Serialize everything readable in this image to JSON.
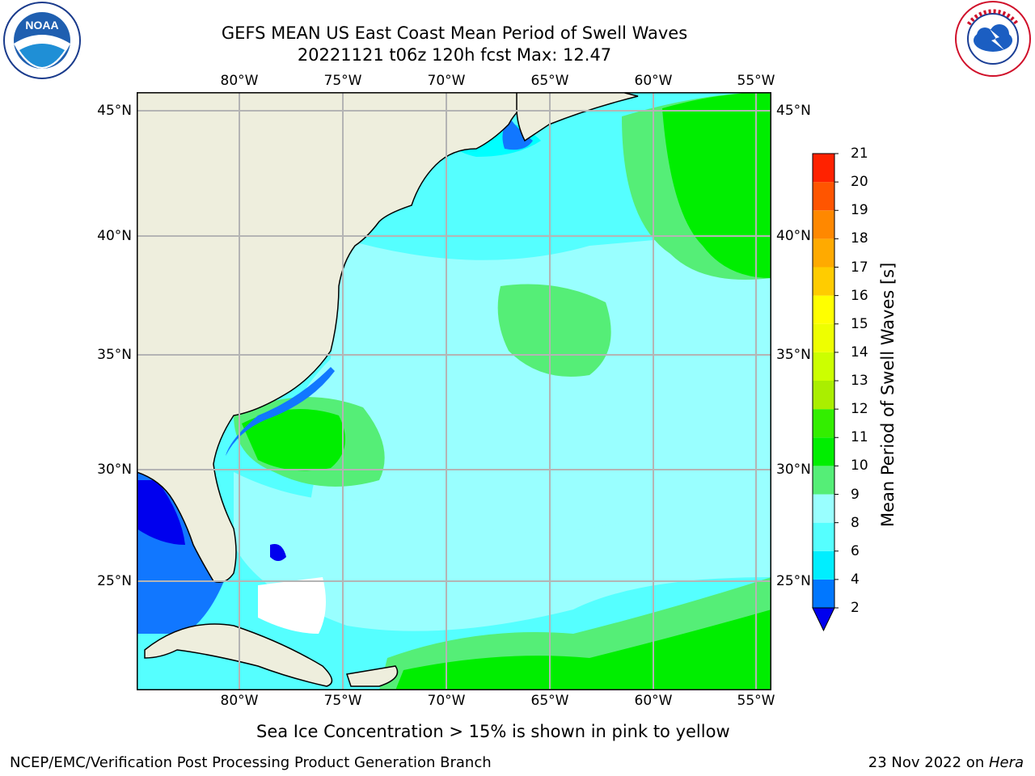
{
  "header": {
    "title_line1": "GEFS MEAN US East Coast Mean Period of Swell Waves",
    "title_line2": "20221121 t06z 120h fcst   Max: 12.47"
  },
  "logos": {
    "left": {
      "icon": "noaa-logo-icon",
      "text": "NOAA"
    },
    "right": {
      "icon": "national-weather-service-logo-icon",
      "text": "NATIONAL WEATHER SERVICE"
    }
  },
  "map": {
    "longitude_labels": [
      "80°W",
      "75°W",
      "70°W",
      "65°W",
      "60°W",
      "55°W"
    ],
    "latitude_labels": [
      "45°N",
      "40°N",
      "35°N",
      "30°N",
      "25°N"
    ],
    "colors": {
      "land": "#eeeedd",
      "ocean_4_6": "#00ffff",
      "ocean_6_8": "#55ffff",
      "ocean_8_9": "#99ffff",
      "ocean_9_10": "#55ee77",
      "ocean_10_11": "#00ee00",
      "low_2_4": "#1177ff",
      "low_lt2": "#0000ee",
      "grid": "#b4b4b4"
    }
  },
  "colorbar": {
    "label": "Mean Period of Swell Waves [s]",
    "ticks": [
      "2",
      "4",
      "6",
      "8",
      "9",
      "10",
      "11",
      "12",
      "13",
      "14",
      "15",
      "16",
      "17",
      "18",
      "19",
      "20",
      "21"
    ],
    "colors": [
      "#0077ff",
      "#00eeff",
      "#55ffff",
      "#99ffff",
      "#55ee77",
      "#00ee00",
      "#33ee00",
      "#aaee00",
      "#ccff00",
      "#eeff00",
      "#ffff00",
      "#ffcc00",
      "#ffaa00",
      "#ff8800",
      "#ff5500",
      "#ff2200"
    ],
    "under_color": "#0000ee"
  },
  "footer": {
    "sea_ice_note": "Sea Ice Concentration > 15% is shown in pink to yellow",
    "credit": "NCEP/EMC/Verification Post Processing Product Generation Branch",
    "date_prefix": "23 Nov 2022 on ",
    "machine": "Hera"
  }
}
